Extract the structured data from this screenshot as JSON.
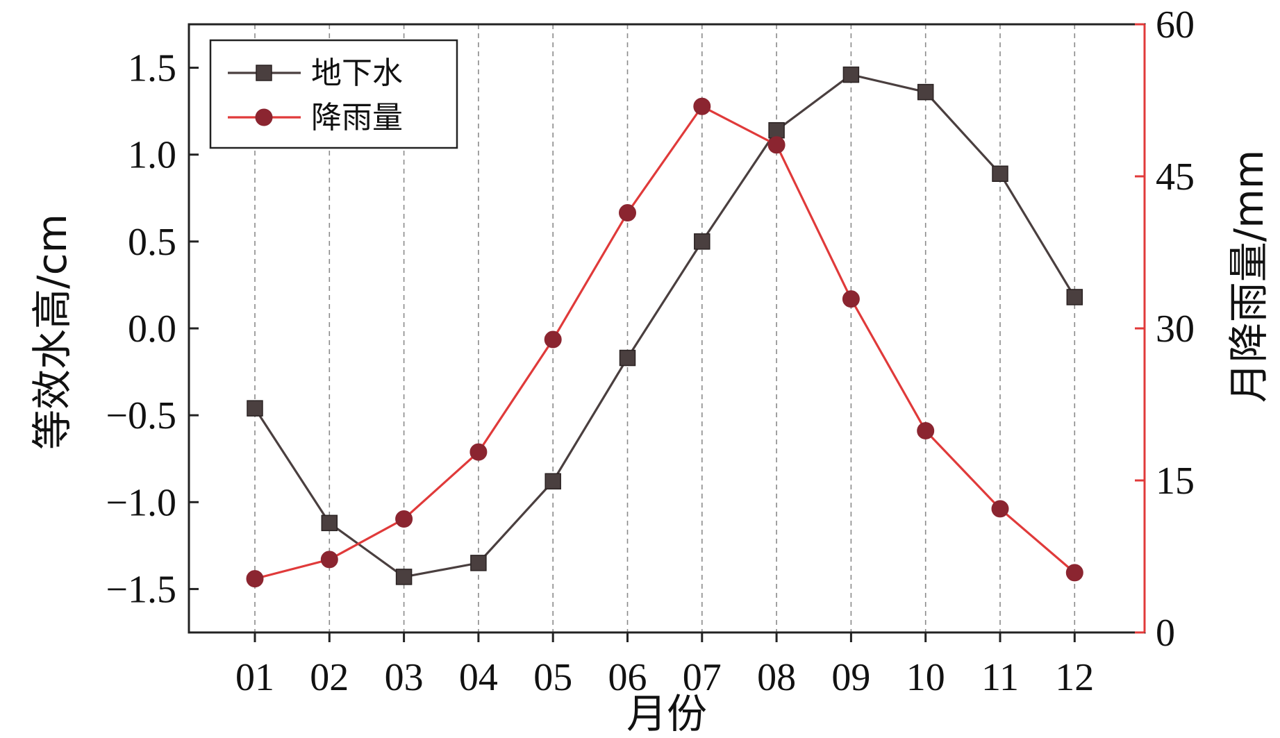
{
  "chart_data": {
    "type": "line",
    "categories": [
      "01",
      "02",
      "03",
      "04",
      "05",
      "06",
      "07",
      "08",
      "09",
      "10",
      "11",
      "12"
    ],
    "xlabel": "月份",
    "ylabel_left": "等效水高/cm",
    "ylabel_right": "月降雨量/mm",
    "ylim_left": [
      -1.75,
      1.75
    ],
    "ylim_right": [
      0,
      60
    ],
    "yticks_left": [
      -1.5,
      -1.0,
      -0.5,
      0.0,
      0.5,
      1.0,
      1.5
    ],
    "yticks_left_labels": [
      "−1.5",
      "−1.0",
      "−0.5",
      "0.0",
      "0.5",
      "1.0",
      "1.5"
    ],
    "yticks_right": [
      0,
      15,
      30,
      45,
      60
    ],
    "yticks_right_labels": [
      "0",
      "15",
      "30",
      "45",
      "60"
    ],
    "grid": "vertical dashed at each month",
    "legend_position": "top-left",
    "series": [
      {
        "name": "地下水",
        "axis": "left",
        "marker": "square",
        "color": "#4a3f3f",
        "values": [
          -0.46,
          -1.12,
          -1.43,
          -1.35,
          -0.88,
          -0.17,
          0.5,
          1.14,
          1.46,
          1.36,
          0.89,
          0.18
        ]
      },
      {
        "name": "降雨量",
        "axis": "right",
        "marker": "circle",
        "color": "#e03a3a",
        "marker_fill": "#8b2530",
        "values": [
          5.3,
          7.2,
          11.2,
          17.8,
          28.9,
          41.4,
          51.9,
          48.1,
          32.9,
          19.9,
          12.2,
          5.9
        ]
      }
    ]
  },
  "colors": {
    "right_axis": "#e03a3a",
    "grid": "#8a8a8a"
  }
}
